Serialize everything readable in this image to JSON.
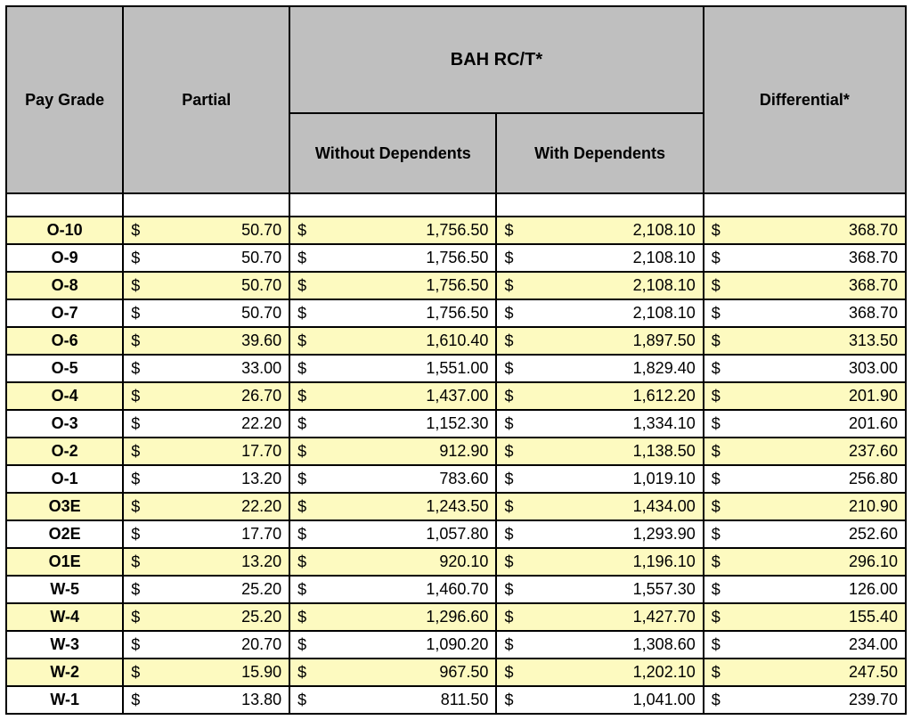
{
  "headers": {
    "pay_grade": "Pay Grade",
    "partial": "Partial",
    "bah_group": "BAH RC/T*",
    "without_dep": "Without Dependents",
    "with_dep": "With Dependents",
    "differential": "Differential*"
  },
  "currency_symbol": "$",
  "colors": {
    "header_bg": "#bfbfbf",
    "alt_row_bg": "#fdfac0",
    "row_bg": "#ffffff",
    "border": "#000000"
  },
  "rows": [
    {
      "grade": "O-10",
      "partial": "50.70",
      "without": "1,756.50",
      "with": "2,108.10",
      "diff": "368.70",
      "alt": true
    },
    {
      "grade": "O-9",
      "partial": "50.70",
      "without": "1,756.50",
      "with": "2,108.10",
      "diff": "368.70",
      "alt": false
    },
    {
      "grade": "O-8",
      "partial": "50.70",
      "without": "1,756.50",
      "with": "2,108.10",
      "diff": "368.70",
      "alt": true
    },
    {
      "grade": "O-7",
      "partial": "50.70",
      "without": "1,756.50",
      "with": "2,108.10",
      "diff": "368.70",
      "alt": false
    },
    {
      "grade": "O-6",
      "partial": "39.60",
      "without": "1,610.40",
      "with": "1,897.50",
      "diff": "313.50",
      "alt": true
    },
    {
      "grade": "O-5",
      "partial": "33.00",
      "without": "1,551.00",
      "with": "1,829.40",
      "diff": "303.00",
      "alt": false
    },
    {
      "grade": "O-4",
      "partial": "26.70",
      "without": "1,437.00",
      "with": "1,612.20",
      "diff": "201.90",
      "alt": true
    },
    {
      "grade": "O-3",
      "partial": "22.20",
      "without": "1,152.30",
      "with": "1,334.10",
      "diff": "201.60",
      "alt": false
    },
    {
      "grade": "O-2",
      "partial": "17.70",
      "without": "912.90",
      "with": "1,138.50",
      "diff": "237.60",
      "alt": true
    },
    {
      "grade": "O-1",
      "partial": "13.20",
      "without": "783.60",
      "with": "1,019.10",
      "diff": "256.80",
      "alt": false
    },
    {
      "grade": "O3E",
      "partial": "22.20",
      "without": "1,243.50",
      "with": "1,434.00",
      "diff": "210.90",
      "alt": true
    },
    {
      "grade": "O2E",
      "partial": "17.70",
      "without": "1,057.80",
      "with": "1,293.90",
      "diff": "252.60",
      "alt": false
    },
    {
      "grade": "O1E",
      "partial": "13.20",
      "without": "920.10",
      "with": "1,196.10",
      "diff": "296.10",
      "alt": true
    },
    {
      "grade": "W-5",
      "partial": "25.20",
      "without": "1,460.70",
      "with": "1,557.30",
      "diff": "126.00",
      "alt": false
    },
    {
      "grade": "W-4",
      "partial": "25.20",
      "without": "1,296.60",
      "with": "1,427.70",
      "diff": "155.40",
      "alt": true
    },
    {
      "grade": "W-3",
      "partial": "20.70",
      "without": "1,090.20",
      "with": "1,308.60",
      "diff": "234.00",
      "alt": false
    },
    {
      "grade": "W-2",
      "partial": "15.90",
      "without": "967.50",
      "with": "1,202.10",
      "diff": "247.50",
      "alt": true
    },
    {
      "grade": "W-1",
      "partial": "13.80",
      "without": "811.50",
      "with": "1,041.00",
      "diff": "239.70",
      "alt": false
    }
  ]
}
